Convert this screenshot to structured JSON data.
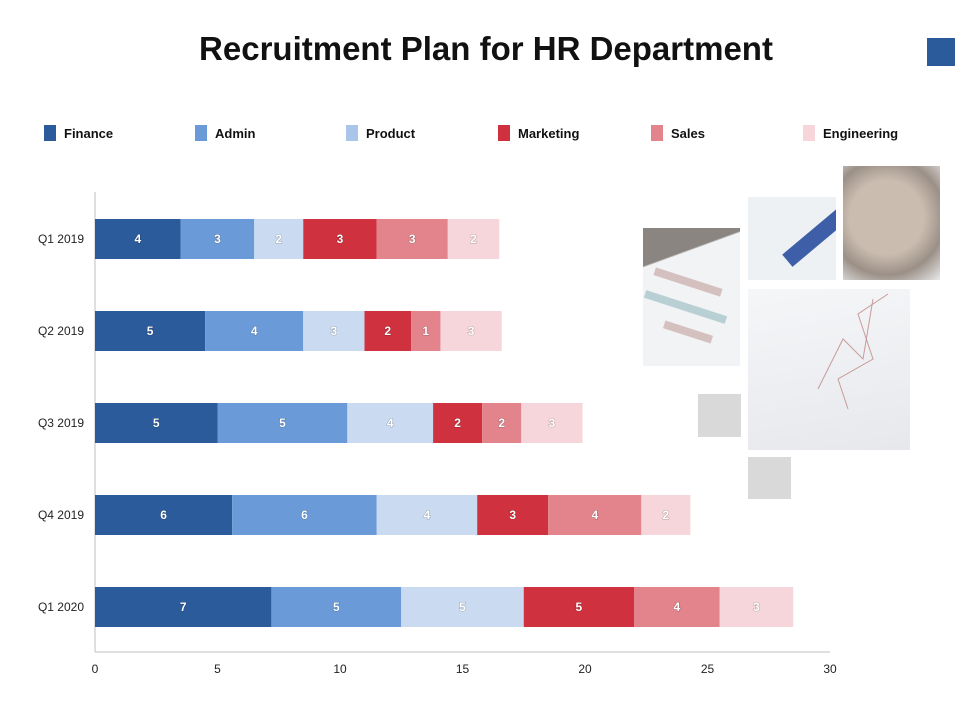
{
  "title": "Recruitment Plan for HR Department",
  "colors": {
    "accent": "#2B5B9B"
  },
  "chart_data": {
    "type": "bar",
    "orientation": "horizontal",
    "stacked": true,
    "categories": [
      "Q1 2019",
      "Q2 2019",
      "Q3 2019",
      "Q4 2019",
      "Q1 2020"
    ],
    "series": [
      {
        "name": "Finance",
        "color": "#2B5B9B",
        "legend_color": "#2B5B9B",
        "values": [
          3.5,
          4.5,
          5.0,
          5.6,
          7.2
        ],
        "labels": [
          "4",
          "5",
          "5",
          "6",
          "7"
        ]
      },
      {
        "name": "Admin",
        "color": "#6A9BD8",
        "legend_color": "#6A9BD8",
        "values": [
          3.0,
          4.0,
          5.3,
          5.9,
          5.3
        ],
        "labels": [
          "3",
          "4",
          "5",
          "6",
          "5"
        ]
      },
      {
        "name": "Product",
        "color": "#CADBF1",
        "legend_color": "#A9C6EA",
        "values": [
          2.0,
          2.5,
          3.5,
          4.1,
          5.0
        ],
        "labels": [
          "2",
          "3",
          "4",
          "4",
          "5"
        ]
      },
      {
        "name": "Marketing",
        "color": "#D0313F",
        "legend_color": "#D0313F",
        "values": [
          3.0,
          1.9,
          2.0,
          2.9,
          4.5
        ],
        "labels": [
          "3",
          "2",
          "2",
          "3",
          "5"
        ]
      },
      {
        "name": "Sales",
        "color": "#E3848C",
        "legend_color": "#E3848C",
        "values": [
          2.9,
          1.2,
          1.6,
          3.8,
          3.5
        ],
        "labels": [
          "3",
          "1",
          "2",
          "4",
          "4"
        ]
      },
      {
        "name": "Engineering",
        "color": "#F6D6DA",
        "legend_color": "#F6D6DA",
        "values": [
          2.1,
          2.5,
          2.5,
          2.0,
          3.0
        ],
        "labels": [
          "2",
          "3",
          "3",
          "2",
          "3"
        ]
      }
    ],
    "xlim": [
      0,
      30
    ],
    "xticks": [
      "0",
      "5",
      "10",
      "15",
      "20",
      "25",
      "30"
    ],
    "grid": false,
    "legend_placement": "top"
  }
}
